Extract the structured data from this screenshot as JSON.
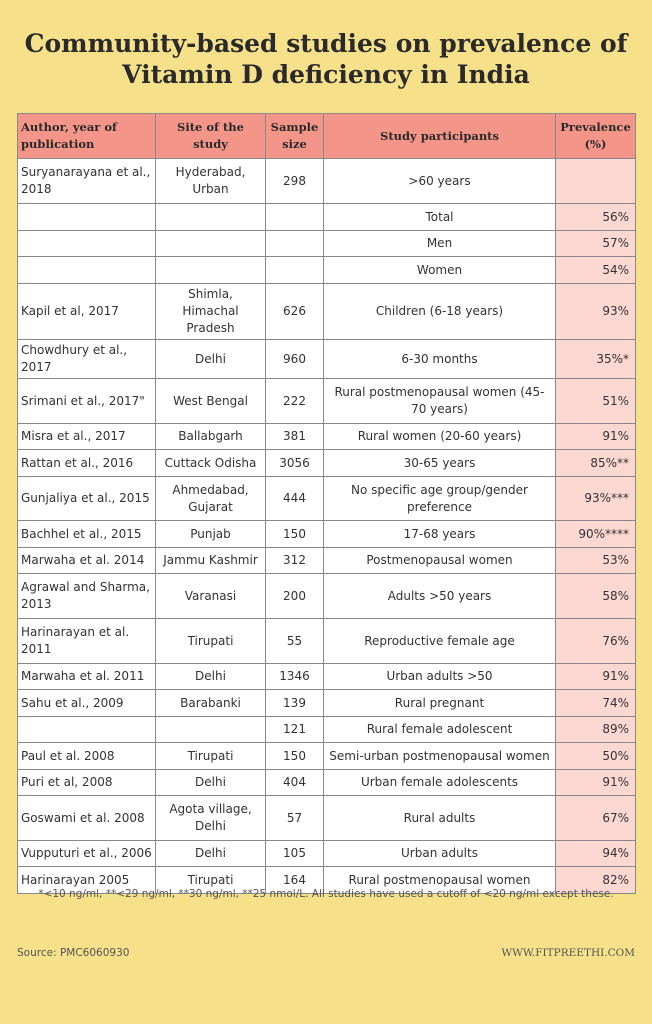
{
  "title_line1": "Community-based studies on prevalence of",
  "title_line2": "Vitamin D deficiency in India",
  "headers": [
    "Author, year of publication",
    "Site of the study",
    "Sample size",
    "Study participants",
    "Prevalence (%)"
  ],
  "rows": [
    [
      "Suryanarayana et al., 2018",
      "Hyderabad, Urban",
      "298",
      ">60 years",
      ""
    ],
    [
      "",
      "",
      "",
      "Total",
      "56%"
    ],
    [
      "",
      "",
      "",
      "Men",
      "57%"
    ],
    [
      "",
      "",
      "",
      "Women",
      "54%"
    ],
    [
      "Kapil et al, 2017",
      "Shimla, Himachal Pradesh",
      "626",
      "Children (6-18 years)",
      "93%"
    ],
    [
      "Chowdhury et al., 2017",
      "Delhi",
      "960",
      "6-30 months",
      "35%*"
    ],
    [
      "Srimani et al., 2017\"",
      "West Bengal",
      "222",
      "Rural postmenopausal women (45-70 years)",
      "51%"
    ],
    [
      "Misra et al., 2017",
      "Ballabgarh",
      "381",
      "Rural women (20-60 years)",
      "91%"
    ],
    [
      "Rattan et al., 2016",
      "Cuttack Odisha",
      "3056",
      "30-65 years",
      "85%**"
    ],
    [
      "Gunjaliya et al., 2015",
      "Ahmedabad, Gujarat",
      "444",
      "No specific age group/gender preference",
      "93%***"
    ],
    [
      "Bachhel et al., 2015",
      "Punjab",
      "150",
      "17-68 years",
      "90%****"
    ],
    [
      "Marwaha et al. 2014",
      "Jammu Kashmir",
      "312",
      "Postmenopausal women",
      "53%"
    ],
    [
      "Agrawal and Sharma, 2013",
      "Varanasi",
      "200",
      "Adults >50 years",
      "58%"
    ],
    [
      "Harinarayan et al. 2011",
      "Tirupati",
      "55",
      "Reproductive female age",
      "76%"
    ],
    [
      "Marwaha et al. 2011",
      "Delhi",
      "1346",
      "Urban adults >50",
      "91%"
    ],
    [
      "Sahu et al., 2009",
      "Barabanki",
      "139",
      "Rural pregnant",
      "74%"
    ],
    [
      "",
      "",
      "121",
      "Rural female adolescent",
      "89%"
    ],
    [
      "Paul et al. 2008",
      "Tirupati",
      "150",
      "Semi-urban postmenopausal women",
      "50%"
    ],
    [
      "Puri et al, 2008",
      "Delhi",
      "404",
      "Urban female adolescents",
      "91%"
    ],
    [
      "Goswami et al. 2008",
      "Agota village, Delhi",
      "57",
      "Rural adults",
      "67%"
    ],
    [
      "Vupputuri et al., 2006",
      "Delhi",
      "105",
      "Urban adults",
      "94%"
    ],
    [
      "Harinarayan 2005",
      "Tirupati",
      "164",
      "Rural postmenopausal women",
      "82%"
    ]
  ],
  "footnote": "*<10 ng/ml, **<29 ng/ml, **30 ng/ml, **25 nmol/L. All studies have used a cutoff of <20 ng/ml except these.",
  "source": "Source: PMC6060930",
  "website": "WWW.FITPREETHI.COM"
}
